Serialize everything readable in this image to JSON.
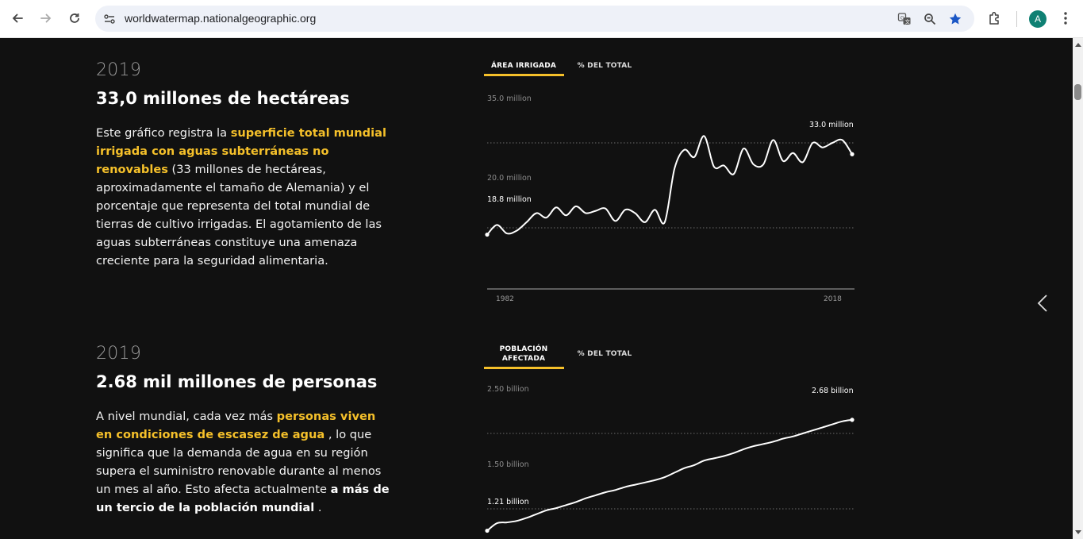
{
  "browser": {
    "url": "worldwatermap.nationalgeographic.org",
    "avatar_letter": "A",
    "icons": [
      "back-icon",
      "forward-icon",
      "reload-icon",
      "site-info-icon",
      "translate-icon",
      "zoom-icon",
      "bookmark-star-icon",
      "extensions-icon",
      "avatar",
      "menu-dots-icon"
    ]
  },
  "sections": [
    {
      "year": "2019",
      "headline": "33,0 millones de hectáreas",
      "body": {
        "p1": "Este gráfico registra la ",
        "h1": "superficie total mundial irrigada con aguas subterráneas no renovables",
        "p2": " (33 millones de hectáreas, aproximadamente el tamaño de Alemania) y el porcentaje que representa del total mundial de tierras de cultivo irrigadas. El agotamiento de las aguas subterráneas constituye una amenaza creciente para la seguridad alimentaria."
      },
      "tabs": [
        "ÁREA IRRIGADA",
        "% DEL TOTAL"
      ]
    },
    {
      "year": "2019",
      "headline": "2.68 mil millones de personas",
      "body": {
        "p1": "A nivel mundial, cada vez más ",
        "h1": "personas viven en condiciones de escasez de agua",
        "p2": " , lo que significa que la demanda de agua en su región supera el suministro renovable durante al menos un mes al año. Esto afecta actualmente ",
        "s1": "a más de un tercio de la población mundial",
        "p3": " ."
      },
      "tabs": [
        "POBLACIÓN AFECTADA",
        "% DEL TOTAL"
      ]
    }
  ],
  "chart_data": [
    {
      "type": "line",
      "title": "",
      "x": [
        1982,
        1983,
        1984,
        1985,
        1986,
        1987,
        1988,
        1989,
        1990,
        1991,
        1992,
        1993,
        1994,
        1995,
        1996,
        1997,
        1998,
        1999,
        2000,
        2001,
        2002,
        2003,
        2004,
        2005,
        2006,
        2007,
        2008,
        2009,
        2010,
        2011,
        2012,
        2013,
        2014,
        2015,
        2016,
        2017,
        2018,
        2019
      ],
      "series": [
        {
          "values": [
            18.8,
            20.5,
            19.0,
            19.5,
            21.0,
            22.6,
            21.8,
            23.6,
            22.2,
            23.8,
            22.6,
            23.0,
            23.4,
            21.2,
            23.2,
            22.6,
            21.0,
            23.2,
            21.0,
            30.5,
            33.8,
            32.5,
            36.2,
            30.8,
            31.0,
            29.5,
            34.0,
            31.2,
            31.2,
            35.5,
            31.8,
            33.2,
            31.6,
            35.0,
            34.2,
            35.0,
            35.5,
            33.0
          ]
        }
      ],
      "grid_lines": [
        {
          "value": 35.0,
          "label": "35.0 million"
        },
        {
          "value": 20.0,
          "label": "20.0 million"
        }
      ],
      "start_label": "18.8 million",
      "end_label": "33.0 million",
      "x_tick_labels": [
        "1982",
        "2018"
      ],
      "ylim": [
        0,
        36.5
      ]
    },
    {
      "type": "line",
      "title": "",
      "x": [
        1982,
        1983,
        1984,
        1985,
        1986,
        1987,
        1988,
        1989,
        1990,
        1991,
        1992,
        1993,
        1994,
        1995,
        1996,
        1997,
        1998,
        1999,
        2000,
        2001,
        2002,
        2003,
        2004,
        2005,
        2006,
        2007,
        2008,
        2009,
        2010,
        2011,
        2012,
        2013,
        2014,
        2015,
        2016,
        2017,
        2018,
        2019
      ],
      "series": [
        {
          "values": [
            1.21,
            1.31,
            1.32,
            1.34,
            1.38,
            1.43,
            1.48,
            1.51,
            1.55,
            1.59,
            1.64,
            1.68,
            1.72,
            1.75,
            1.79,
            1.82,
            1.85,
            1.88,
            1.92,
            1.98,
            2.04,
            2.08,
            2.14,
            2.17,
            2.2,
            2.24,
            2.29,
            2.33,
            2.36,
            2.39,
            2.43,
            2.46,
            2.5,
            2.54,
            2.58,
            2.62,
            2.66,
            2.68
          ]
        }
      ],
      "grid_lines": [
        {
          "value": 2.5,
          "label": "2.50 billion"
        },
        {
          "value": 1.5,
          "label": "1.50 billion"
        }
      ],
      "start_label": "1.21 billion",
      "end_label": "2.68 billion"
    }
  ]
}
